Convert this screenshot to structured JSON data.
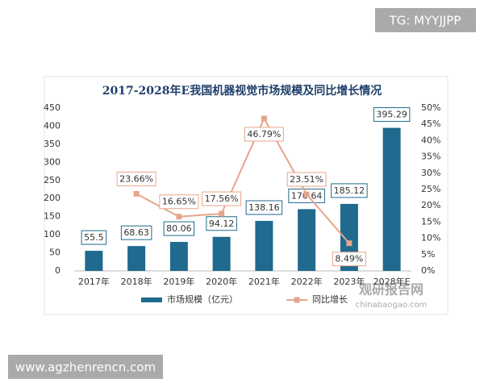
{
  "chart_data": {
    "type": "bar_line",
    "title": "2017-2028年E我国机器视觉市场规模及同比增长情况",
    "categories": [
      "2017年",
      "2018年",
      "2019年",
      "2020年",
      "2021年",
      "2022年",
      "2023年",
      "2028年E"
    ],
    "series": [
      {
        "name": "市场规模（亿元）",
        "type": "bar",
        "color": "#1f6a8e",
        "values": [
          55.5,
          68.63,
          80.06,
          94.12,
          138.16,
          170.64,
          185.12,
          395.29
        ]
      },
      {
        "name": "同比增长",
        "type": "line",
        "axis": "y2",
        "color": "#e6a58a",
        "values": [
          null,
          23.66,
          16.65,
          17.56,
          46.79,
          23.51,
          8.49,
          null
        ],
        "value_labels": [
          null,
          "23.66%",
          "16.65%",
          "17.56%",
          "46.79%",
          "23.51%",
          "8.49%",
          null
        ]
      }
    ],
    "ylim": [
      0,
      450
    ],
    "yticks": [
      0,
      50,
      100,
      150,
      200,
      250,
      300,
      350,
      400,
      450
    ],
    "y2lim": [
      0,
      50
    ],
    "y2ticks": [
      {
        "value": 0,
        "label": "0%"
      },
      {
        "value": 5,
        "label": "5%"
      },
      {
        "value": 10,
        "label": "10%"
      },
      {
        "value": 15,
        "label": "15%"
      },
      {
        "value": 20,
        "label": "20%"
      },
      {
        "value": 25,
        "label": "25%"
      },
      {
        "value": 30,
        "label": "30%"
      },
      {
        "value": 35,
        "label": "35%"
      },
      {
        "value": 40,
        "label": "40%"
      },
      {
        "value": 45,
        "label": "45%"
      },
      {
        "value": 50,
        "label": "50%"
      }
    ],
    "grid": false,
    "legend": "bottom"
  },
  "watermarks": {
    "top_right": "TG: MYYJJPP",
    "bottom_left": "www.agzhenrencn.com",
    "logo": "观研报告网",
    "logo_url": "chinabaogao.com"
  }
}
